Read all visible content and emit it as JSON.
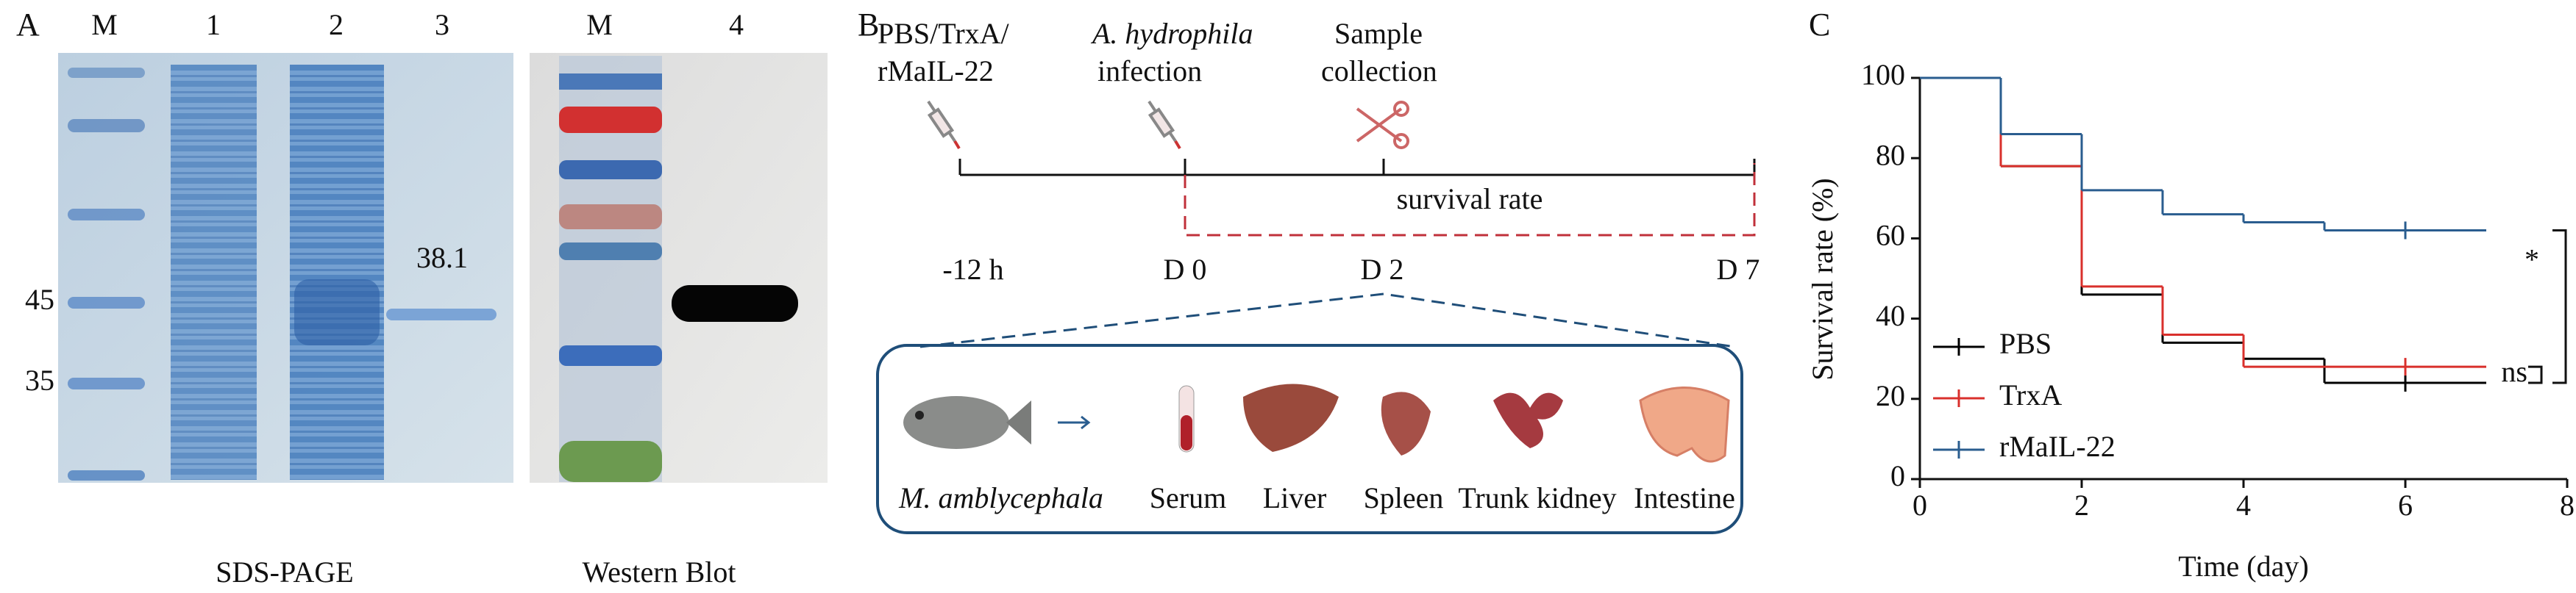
{
  "panel_a": {
    "label": "A",
    "gel_lanes": [
      "M",
      "1",
      "2",
      "3"
    ],
    "markers": [
      45,
      35
    ],
    "band_label": 38.1,
    "caption": "SDS-PAGE",
    "blot_lanes": [
      "M",
      "4"
    ],
    "blot_caption": "Western Blot"
  },
  "panel_b": {
    "label": "B",
    "steps": [
      {
        "lines": [
          "PBS/TrxA/",
          "rMaIL-22"
        ]
      },
      {
        "lines": [
          "A. hydrophila",
          "infection"
        ]
      },
      {
        "lines": [
          "Sample",
          "collection"
        ]
      }
    ],
    "period": "survival rate",
    "times": [
      "-12 h",
      "D 0",
      "D 2",
      "D 7"
    ],
    "samples": [
      "M. amblycephala",
      "Serum",
      "Liver",
      "Spleen",
      "Trunk kidney",
      "Intestine"
    ]
  },
  "chart_data": {
    "type": "line",
    "step": true,
    "panel_label": "C",
    "xlabel": "Time (day)",
    "ylabel": "Survival rate (%)",
    "x": [
      0,
      1,
      2,
      3,
      4,
      5,
      6,
      7
    ],
    "series": [
      {
        "name": "PBS",
        "color": "#000000",
        "values": [
          100,
          78,
          46,
          34,
          30,
          24,
          24,
          24
        ]
      },
      {
        "name": "TrxA",
        "color": "#d9302c",
        "values": [
          100,
          78,
          48,
          36,
          28,
          28,
          28,
          28
        ]
      },
      {
        "name": "rMaIL-22",
        "color": "#2a5d8f",
        "values": [
          100,
          86,
          72,
          66,
          64,
          62,
          62,
          62
        ]
      }
    ],
    "censor_x": [
      6
    ],
    "xlim": [
      0,
      8
    ],
    "ylim": [
      0,
      100
    ],
    "xticks": [
      0,
      2,
      4,
      6,
      8
    ],
    "yticks": [
      0,
      20,
      40,
      60,
      80,
      100
    ],
    "legend": "lower left",
    "annotations": [
      {
        "text": "*"
      },
      {
        "text": "ns"
      }
    ]
  }
}
